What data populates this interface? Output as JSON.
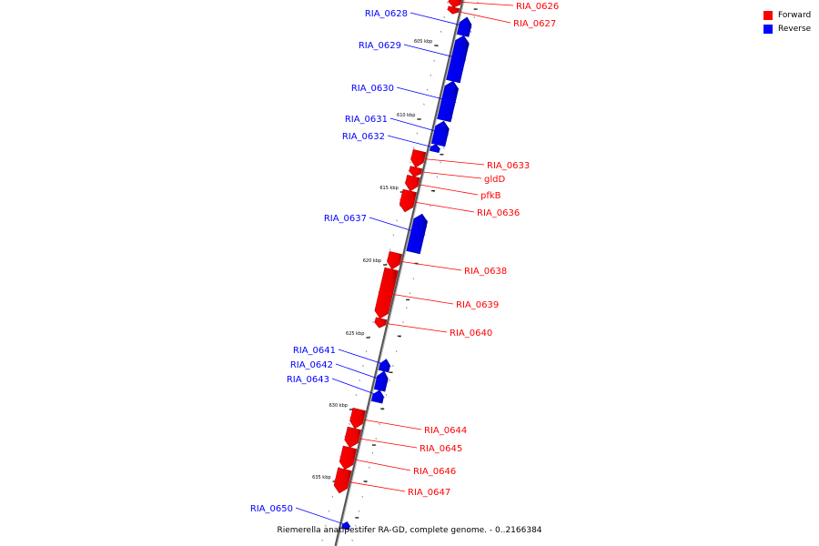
{
  "legend": {
    "forward_label": "Forward",
    "reverse_label": "Reverse",
    "forward_color": "#ff0000",
    "reverse_color": "#0000ff"
  },
  "caption": "Riemerella anatipestifer RA-GD, complete genome. - 0..2166384",
  "axis": {
    "unit": "kbp",
    "major_ticks_kbp": [
      605,
      610,
      615,
      620,
      625,
      630,
      635
    ]
  },
  "genes": [
    {
      "name": "RIA_0626",
      "strand": "forward"
    },
    {
      "name": "RIA_0627",
      "strand": "forward"
    },
    {
      "name": "RIA_0628",
      "strand": "reverse"
    },
    {
      "name": "RIA_0629",
      "strand": "reverse"
    },
    {
      "name": "RIA_0630",
      "strand": "reverse"
    },
    {
      "name": "RIA_0631",
      "strand": "reverse"
    },
    {
      "name": "RIA_0632",
      "strand": "reverse"
    },
    {
      "name": "RIA_0633",
      "strand": "forward"
    },
    {
      "name": "gldD",
      "strand": "forward"
    },
    {
      "name": "pfkB",
      "strand": "forward"
    },
    {
      "name": "RIA_0636",
      "strand": "forward"
    },
    {
      "name": "RIA_0637",
      "strand": "reverse"
    },
    {
      "name": "RIA_0638",
      "strand": "forward"
    },
    {
      "name": "RIA_0639",
      "strand": "forward"
    },
    {
      "name": "RIA_0640",
      "strand": "forward"
    },
    {
      "name": "RIA_0641",
      "strand": "reverse"
    },
    {
      "name": "RIA_0642",
      "strand": "reverse"
    },
    {
      "name": "RIA_0643",
      "strand": "reverse"
    },
    {
      "name": "RIA_0644",
      "strand": "forward"
    },
    {
      "name": "RIA_0645",
      "strand": "forward"
    },
    {
      "name": "RIA_0646",
      "strand": "forward"
    },
    {
      "name": "RIA_0647",
      "strand": "forward"
    },
    {
      "name": "RIA_0650",
      "strand": "reverse"
    }
  ]
}
